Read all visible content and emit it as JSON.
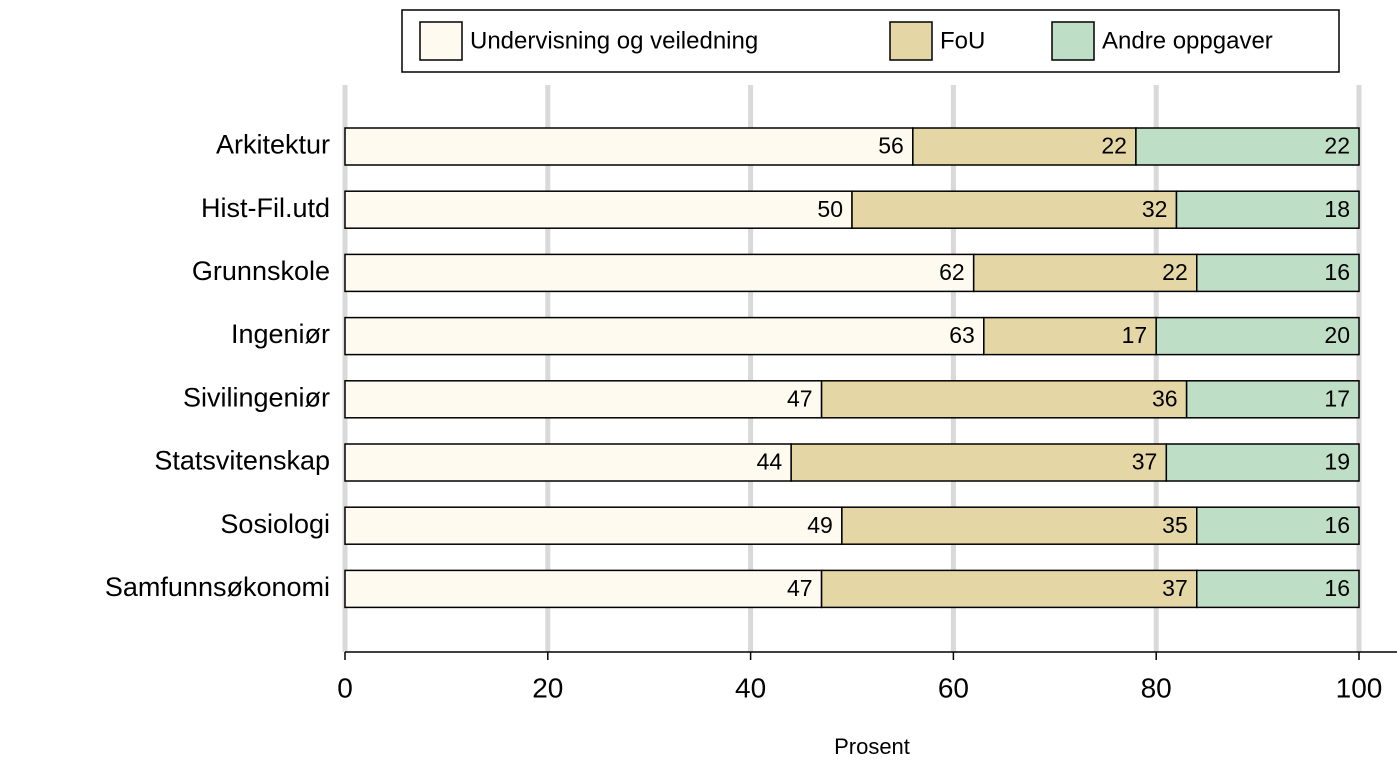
{
  "chart_data": {
    "type": "stacked_barh",
    "categories": [
      "Arkitektur",
      "Hist-Fil.utd",
      "Grunnskole",
      "Ingeniør",
      "Sivilingeniør",
      "Statsvitenskap",
      "Sosiologi",
      "Samfunnsøkonomi"
    ],
    "series": [
      {
        "name": "Undervisning og veiledning",
        "color": "#fefaf0",
        "values": [
          56,
          50,
          62,
          63,
          47,
          44,
          49,
          47
        ]
      },
      {
        "name": "FoU",
        "color": "#e5d7a5",
        "values": [
          22,
          32,
          22,
          17,
          36,
          37,
          35,
          37
        ]
      },
      {
        "name": "Andre oppgaver",
        "color": "#bedfc6",
        "values": [
          22,
          18,
          16,
          20,
          17,
          19,
          16,
          16
        ]
      }
    ],
    "x_label": "Prosent",
    "xlim": [
      0,
      100
    ],
    "xticks": [
      0,
      20,
      40,
      60,
      80,
      100
    ],
    "grid": true,
    "legend": "top"
  }
}
